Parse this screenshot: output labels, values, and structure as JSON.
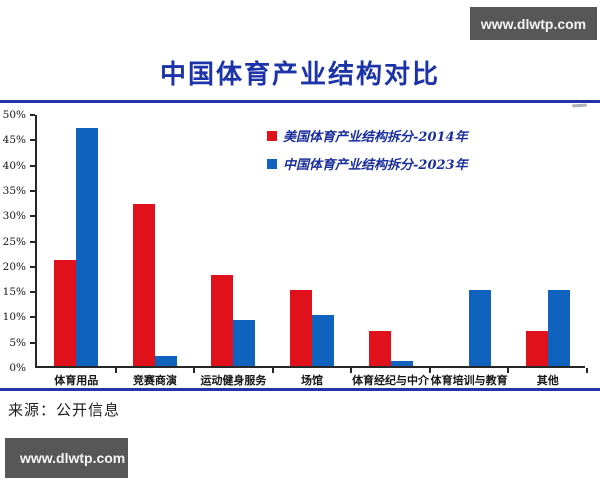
{
  "watermark": {
    "text": "www.dlwtp.com"
  },
  "header": {
    "title": "中国体育产业结构对比"
  },
  "source": {
    "text": "来源：公开信息"
  },
  "colors": {
    "title_blue": "#1c34a8",
    "divider_blue": "#2334a6",
    "series_us_red": "#e0111a",
    "series_cn_blue": "#0f63be",
    "watermark_gray": "#575757",
    "legend_text_blue": "#1b2f9c"
  },
  "chart_data": {
    "type": "bar",
    "title": "中国体育产业结构对比",
    "categories": [
      "体育用品",
      "竞赛商演",
      "运动健身服务",
      "场馆",
      "体育经纪与中介",
      "体育培训与教育",
      "其他"
    ],
    "series": [
      {
        "name": "美国体育产业结构拆分-2014年",
        "color": "#e0111a",
        "values": [
          21,
          32,
          18,
          15,
          7,
          0,
          7
        ]
      },
      {
        "name": "中国体育产业结构拆分-2023年",
        "color": "#0f63be",
        "values": [
          47,
          2,
          9,
          10,
          1,
          15,
          15
        ]
      }
    ],
    "xlabel": "",
    "ylabel": "",
    "ylim": [
      0,
      50
    ],
    "yticks": [
      0,
      5,
      10,
      15,
      20,
      25,
      30,
      35,
      40,
      45,
      50
    ],
    "ytick_suffix": "%",
    "grid": false,
    "legend_position": "top-center-inside"
  }
}
